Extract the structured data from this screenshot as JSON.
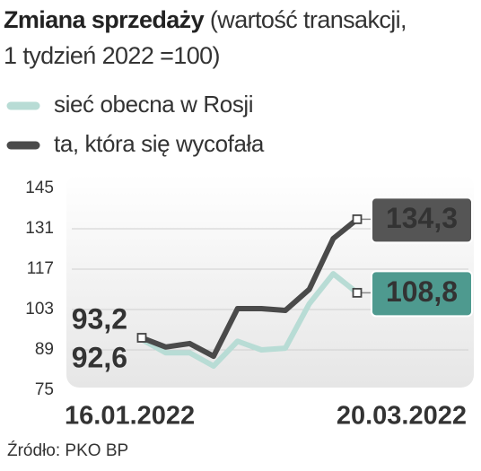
{
  "chart_data": {
    "type": "line",
    "title": "Zmiana sprzedaży",
    "subtitle": "(wartość transakcji, 1 tydzień 2022 =100)",
    "source": "Źródło: PKO BP",
    "categories": [
      "16.01.2022",
      null,
      null,
      null,
      null,
      null,
      null,
      null,
      null,
      "20.03.2022"
    ],
    "series": [
      {
        "name": "sieć obecna w Rosji",
        "color": "#b8dcd5",
        "label_color": "#4e9a8f",
        "values": [
          92.6,
          88,
          88,
          83.4,
          92,
          89,
          89.6,
          105,
          115.4,
          108.8
        ],
        "value_labels": [
          "92,6",
          null,
          null,
          null,
          null,
          null,
          null,
          null,
          null,
          "108,8"
        ]
      },
      {
        "name": "ta, która się wycofała",
        "color": "#4a4a4a",
        "label_color": "#555555",
        "values": [
          93.2,
          90,
          91.2,
          86.8,
          103.3,
          103.3,
          102.7,
          110,
          127.6,
          134.3
        ],
        "value_labels": [
          "93,2",
          null,
          null,
          null,
          null,
          null,
          null,
          null,
          null,
          "134,3"
        ]
      }
    ],
    "ylim": [
      75,
      145
    ],
    "yticks": [
      75,
      89,
      103,
      117,
      131,
      145
    ],
    "grid": true
  }
}
